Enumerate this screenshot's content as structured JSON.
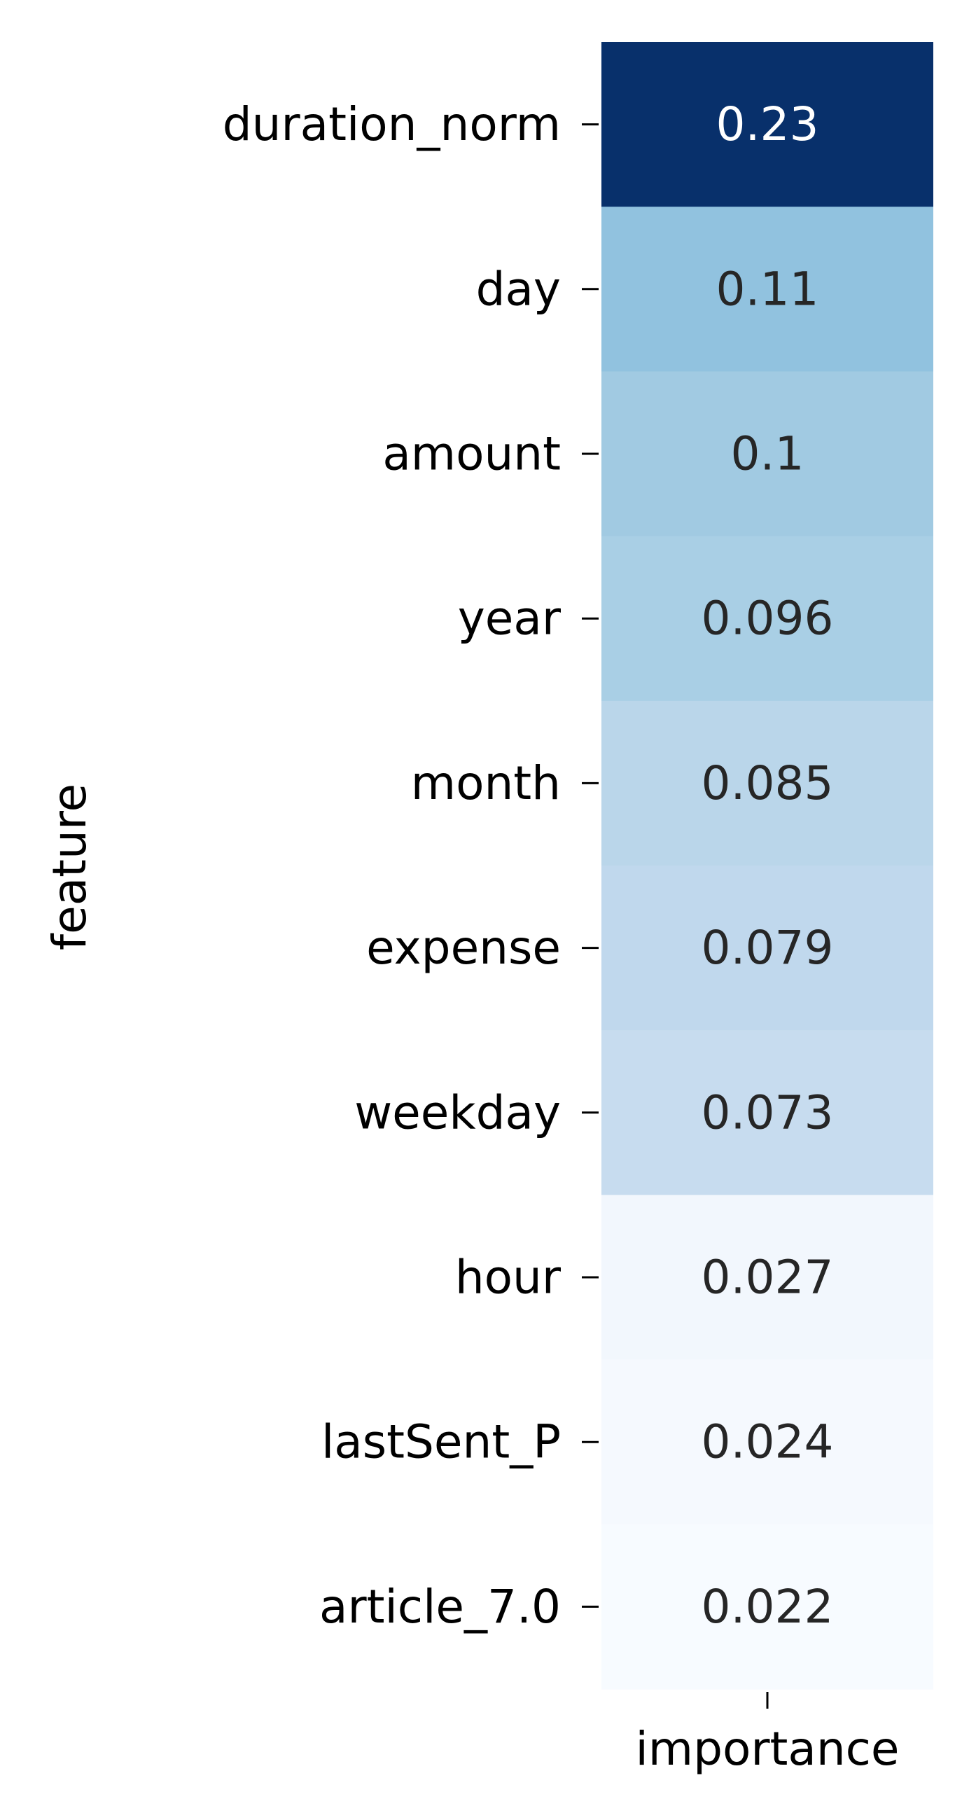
{
  "chart_data": {
    "type": "heatmap",
    "title": "",
    "xlabel": "",
    "ylabel": "feature",
    "columns": [
      "importance"
    ],
    "rows": [
      "duration_norm",
      "day",
      "amount",
      "year",
      "month",
      "expense",
      "weekday",
      "hour",
      "lastSent_P",
      "article_7.0"
    ],
    "values": [
      0.23,
      0.11,
      0.1,
      0.096,
      0.085,
      0.079,
      0.073,
      0.027,
      0.024,
      0.022
    ],
    "value_labels": [
      "0.23",
      "0.11",
      "0.1",
      "0.096",
      "0.085",
      "0.079",
      "0.073",
      "0.027",
      "0.024",
      "0.022"
    ],
    "colormap": "Blues",
    "colorbar": false,
    "grid": false,
    "colors": {
      "cell_fill": [
        "#08306b",
        "#91c2df",
        "#a1cae2",
        "#a9cfe5",
        "#bad6ea",
        "#c0d8ed",
        "#c7dcef",
        "#f2f7fd",
        "#f5f9fe",
        "#f7fbff"
      ],
      "text_dark": "#262626",
      "text_light": "#ffffff"
    }
  }
}
